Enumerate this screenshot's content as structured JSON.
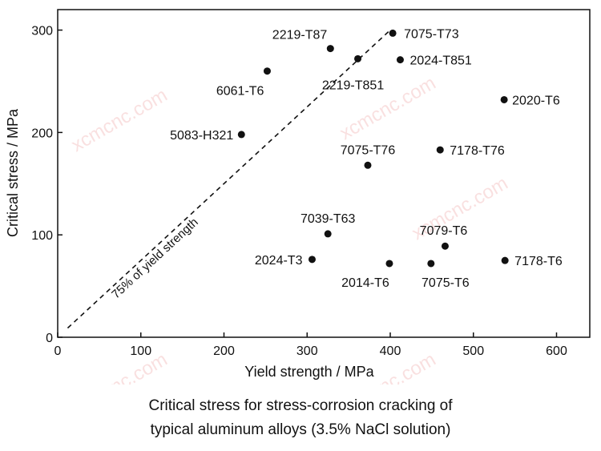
{
  "caption": {
    "line1": "Critical stress for stress-corrosion cracking of",
    "line2": "typical aluminum alloys (3.5% NaCl solution)"
  },
  "watermark_text": "xcmcnc.com",
  "chart_data": {
    "type": "scatter",
    "xlabel": "Yield strength / MPa",
    "ylabel": "Critical stress / MPa",
    "xlim": [
      0,
      640
    ],
    "ylim": [
      0,
      320
    ],
    "xticks": [
      0,
      100,
      200,
      300,
      400,
      500,
      600
    ],
    "yticks": [
      0,
      100,
      200,
      300
    ],
    "grid": false,
    "points": [
      {
        "label": "2219-T87",
        "x": 328,
        "y": 282
      },
      {
        "label": "7075-T73",
        "x": 403,
        "y": 297
      },
      {
        "label": "2219-T851",
        "x": 361,
        "y": 272
      },
      {
        "label": "2024-T851",
        "x": 412,
        "y": 271
      },
      {
        "label": "6061-T6",
        "x": 252,
        "y": 260
      },
      {
        "label": "2020-T6",
        "x": 537,
        "y": 232
      },
      {
        "label": "5083-H321",
        "x": 221,
        "y": 198
      },
      {
        "label": "7178-T76",
        "x": 460,
        "y": 183
      },
      {
        "label": "7075-T76",
        "x": 373,
        "y": 168
      },
      {
        "label": "7039-T63",
        "x": 325,
        "y": 101
      },
      {
        "label": "7079-T6",
        "x": 466,
        "y": 89
      },
      {
        "label": "2024-T3",
        "x": 306,
        "y": 76
      },
      {
        "label": "2014-T6",
        "x": 399,
        "y": 72
      },
      {
        "label": "7075-T6",
        "x": 449,
        "y": 72
      },
      {
        "label": "7178-T6",
        "x": 538,
        "y": 75
      }
    ],
    "reference_line": {
      "label": "75% of yield strength",
      "ratio": 0.75,
      "x_range": [
        12,
        398
      ],
      "style": "dashed"
    }
  }
}
